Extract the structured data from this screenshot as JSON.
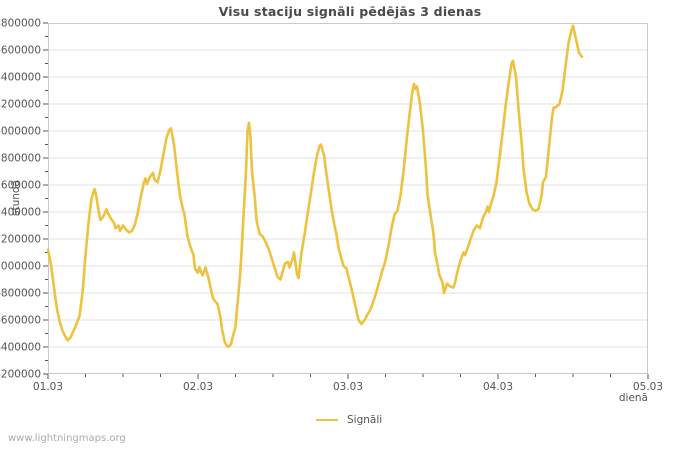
{
  "watermark": "www.lightningmaps.org",
  "colors": {
    "series": "#edc240",
    "grid": "#e0e0e0",
    "border": "#c9c9c9",
    "tick": "#555555",
    "text": "#545454",
    "title": "#4a4a4a",
    "watermark": "#aaaaaa",
    "background": "#ffffff"
  },
  "chart_data": {
    "type": "line",
    "title": "Visu staciju signāli pēdējās 3 dienas",
    "xlabel": "dienā",
    "ylabel": "stundā",
    "legend": [
      {
        "label": "Signāli",
        "color": "#edc240"
      }
    ],
    "legend_position": "bottom-center",
    "grid": "horizontal-only",
    "xlim": [
      0,
      4
    ],
    "x_tick_labels": [
      "01.03",
      "02.03",
      "03.03",
      "04.03",
      "05.03"
    ],
    "x_tick_positions": [
      0,
      1,
      2,
      3,
      4
    ],
    "x_minor_step": 0.25,
    "ylim": [
      6200000,
      8800000
    ],
    "y_tick_step": 200000,
    "y_minor_step": 100000,
    "series": [
      {
        "name": "Signāli",
        "color": "#edc240",
        "points": [
          [
            0.0,
            7120000
          ],
          [
            0.02,
            7010000
          ],
          [
            0.04,
            6840000
          ],
          [
            0.06,
            6680000
          ],
          [
            0.08,
            6580000
          ],
          [
            0.1,
            6510000
          ],
          [
            0.13,
            6450000
          ],
          [
            0.15,
            6470000
          ],
          [
            0.17,
            6520000
          ],
          [
            0.19,
            6570000
          ],
          [
            0.21,
            6630000
          ],
          [
            0.23,
            6800000
          ],
          [
            0.25,
            7080000
          ],
          [
            0.27,
            7320000
          ],
          [
            0.29,
            7500000
          ],
          [
            0.31,
            7570000
          ],
          [
            0.32,
            7530000
          ],
          [
            0.34,
            7390000
          ],
          [
            0.35,
            7340000
          ],
          [
            0.37,
            7370000
          ],
          [
            0.39,
            7420000
          ],
          [
            0.4,
            7390000
          ],
          [
            0.42,
            7350000
          ],
          [
            0.44,
            7320000
          ],
          [
            0.45,
            7280000
          ],
          [
            0.47,
            7300000
          ],
          [
            0.48,
            7260000
          ],
          [
            0.5,
            7300000
          ],
          [
            0.52,
            7270000
          ],
          [
            0.54,
            7250000
          ],
          [
            0.56,
            7260000
          ],
          [
            0.58,
            7310000
          ],
          [
            0.6,
            7400000
          ],
          [
            0.62,
            7520000
          ],
          [
            0.64,
            7620000
          ],
          [
            0.65,
            7650000
          ],
          [
            0.66,
            7610000
          ],
          [
            0.68,
            7660000
          ],
          [
            0.7,
            7690000
          ],
          [
            0.71,
            7640000
          ],
          [
            0.73,
            7620000
          ],
          [
            0.75,
            7710000
          ],
          [
            0.77,
            7830000
          ],
          [
            0.79,
            7950000
          ],
          [
            0.81,
            8010000
          ],
          [
            0.82,
            8020000
          ],
          [
            0.84,
            7900000
          ],
          [
            0.86,
            7700000
          ],
          [
            0.88,
            7520000
          ],
          [
            0.9,
            7420000
          ],
          [
            0.91,
            7380000
          ],
          [
            0.93,
            7220000
          ],
          [
            0.95,
            7140000
          ],
          [
            0.97,
            7080000
          ],
          [
            0.98,
            6980000
          ],
          [
            1.0,
            6950000
          ],
          [
            1.01,
            6990000
          ],
          [
            1.03,
            6930000
          ],
          [
            1.05,
            6990000
          ],
          [
            1.06,
            6950000
          ],
          [
            1.07,
            6910000
          ],
          [
            1.09,
            6810000
          ],
          [
            1.1,
            6760000
          ],
          [
            1.12,
            6730000
          ],
          [
            1.13,
            6720000
          ],
          [
            1.15,
            6620000
          ],
          [
            1.16,
            6530000
          ],
          [
            1.18,
            6430000
          ],
          [
            1.2,
            6400000
          ],
          [
            1.22,
            6420000
          ],
          [
            1.23,
            6470000
          ],
          [
            1.25,
            6550000
          ],
          [
            1.26,
            6680000
          ],
          [
            1.28,
            6920000
          ],
          [
            1.29,
            7100000
          ],
          [
            1.3,
            7300000
          ],
          [
            1.32,
            7700000
          ],
          [
            1.33,
            8000000
          ],
          [
            1.34,
            8060000
          ],
          [
            1.35,
            7950000
          ],
          [
            1.36,
            7700000
          ],
          [
            1.38,
            7490000
          ],
          [
            1.39,
            7340000
          ],
          [
            1.41,
            7240000
          ],
          [
            1.43,
            7220000
          ],
          [
            1.45,
            7180000
          ],
          [
            1.47,
            7130000
          ],
          [
            1.49,
            7060000
          ],
          [
            1.51,
            6990000
          ],
          [
            1.53,
            6920000
          ],
          [
            1.55,
            6900000
          ],
          [
            1.57,
            6980000
          ],
          [
            1.58,
            7020000
          ],
          [
            1.6,
            7030000
          ],
          [
            1.61,
            6990000
          ],
          [
            1.63,
            7050000
          ],
          [
            1.64,
            7100000
          ],
          [
            1.66,
            6940000
          ],
          [
            1.67,
            6910000
          ],
          [
            1.69,
            7100000
          ],
          [
            1.71,
            7230000
          ],
          [
            1.73,
            7380000
          ],
          [
            1.75,
            7520000
          ],
          [
            1.77,
            7670000
          ],
          [
            1.79,
            7800000
          ],
          [
            1.81,
            7890000
          ],
          [
            1.82,
            7900000
          ],
          [
            1.84,
            7820000
          ],
          [
            1.86,
            7650000
          ],
          [
            1.88,
            7500000
          ],
          [
            1.89,
            7420000
          ],
          [
            1.91,
            7300000
          ],
          [
            1.92,
            7250000
          ],
          [
            1.94,
            7120000
          ],
          [
            1.96,
            7040000
          ],
          [
            1.97,
            7000000
          ],
          [
            1.99,
            6980000
          ],
          [
            2.01,
            6890000
          ],
          [
            2.03,
            6800000
          ],
          [
            2.05,
            6700000
          ],
          [
            2.07,
            6600000
          ],
          [
            2.09,
            6570000
          ],
          [
            2.11,
            6600000
          ],
          [
            2.13,
            6640000
          ],
          [
            2.15,
            6680000
          ],
          [
            2.17,
            6740000
          ],
          [
            2.19,
            6810000
          ],
          [
            2.21,
            6890000
          ],
          [
            2.23,
            6970000
          ],
          [
            2.25,
            7040000
          ],
          [
            2.27,
            7150000
          ],
          [
            2.29,
            7280000
          ],
          [
            2.31,
            7380000
          ],
          [
            2.33,
            7410000
          ],
          [
            2.35,
            7520000
          ],
          [
            2.37,
            7700000
          ],
          [
            2.39,
            7920000
          ],
          [
            2.41,
            8120000
          ],
          [
            2.43,
            8300000
          ],
          [
            2.44,
            8350000
          ],
          [
            2.45,
            8310000
          ],
          [
            2.46,
            8330000
          ],
          [
            2.48,
            8200000
          ],
          [
            2.5,
            8000000
          ],
          [
            2.52,
            7720000
          ],
          [
            2.53,
            7530000
          ],
          [
            2.55,
            7380000
          ],
          [
            2.57,
            7240000
          ],
          [
            2.58,
            7100000
          ],
          [
            2.6,
            6990000
          ],
          [
            2.61,
            6930000
          ],
          [
            2.63,
            6880000
          ],
          [
            2.64,
            6800000
          ],
          [
            2.66,
            6870000
          ],
          [
            2.68,
            6850000
          ],
          [
            2.7,
            6840000
          ],
          [
            2.71,
            6860000
          ],
          [
            2.73,
            6960000
          ],
          [
            2.75,
            7040000
          ],
          [
            2.77,
            7100000
          ],
          [
            2.78,
            7080000
          ],
          [
            2.8,
            7140000
          ],
          [
            2.82,
            7210000
          ],
          [
            2.84,
            7270000
          ],
          [
            2.86,
            7300000
          ],
          [
            2.88,
            7280000
          ],
          [
            2.9,
            7360000
          ],
          [
            2.92,
            7400000
          ],
          [
            2.93,
            7440000
          ],
          [
            2.94,
            7400000
          ],
          [
            2.95,
            7450000
          ],
          [
            2.97,
            7520000
          ],
          [
            2.99,
            7620000
          ],
          [
            3.01,
            7800000
          ],
          [
            3.03,
            7980000
          ],
          [
            3.05,
            8180000
          ],
          [
            3.07,
            8350000
          ],
          [
            3.09,
            8500000
          ],
          [
            3.1,
            8520000
          ],
          [
            3.12,
            8400000
          ],
          [
            3.14,
            8120000
          ],
          [
            3.16,
            7880000
          ],
          [
            3.17,
            7720000
          ],
          [
            3.19,
            7550000
          ],
          [
            3.21,
            7460000
          ],
          [
            3.23,
            7420000
          ],
          [
            3.25,
            7410000
          ],
          [
            3.27,
            7420000
          ],
          [
            3.29,
            7520000
          ],
          [
            3.3,
            7620000
          ],
          [
            3.32,
            7660000
          ],
          [
            3.34,
            7880000
          ],
          [
            3.36,
            8100000
          ],
          [
            3.37,
            8170000
          ],
          [
            3.39,
            8180000
          ],
          [
            3.41,
            8200000
          ],
          [
            3.43,
            8300000
          ],
          [
            3.45,
            8480000
          ],
          [
            3.47,
            8650000
          ],
          [
            3.49,
            8750000
          ],
          [
            3.5,
            8780000
          ],
          [
            3.52,
            8680000
          ],
          [
            3.54,
            8580000
          ],
          [
            3.56,
            8550000
          ]
        ]
      }
    ]
  }
}
